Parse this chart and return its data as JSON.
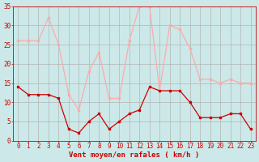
{
  "x": [
    0,
    1,
    2,
    3,
    4,
    5,
    6,
    7,
    8,
    9,
    10,
    11,
    12,
    13,
    14,
    15,
    16,
    17,
    18,
    19,
    20,
    21,
    22,
    23
  ],
  "wind_avg": [
    14,
    12,
    12,
    12,
    11,
    3,
    2,
    5,
    7,
    3,
    5,
    7,
    8,
    14,
    13,
    13,
    13,
    10,
    6,
    6,
    6,
    7,
    7,
    3
  ],
  "wind_gust": [
    26,
    26,
    26,
    32,
    25,
    12,
    8,
    18,
    23,
    11,
    11,
    26,
    35,
    35,
    13,
    30,
    29,
    24,
    16,
    16,
    15,
    16,
    15,
    15
  ],
  "color_avg": "#cc0000",
  "color_gust": "#ffaaaa",
  "bg_color": "#cce8e8",
  "grid_color": "#aaaaaa",
  "xlabel": "Vent moyen/en rafales ( km/h )",
  "ylim": [
    0,
    35
  ],
  "yticks": [
    0,
    5,
    10,
    15,
    20,
    25,
    30,
    35
  ],
  "xticks": [
    0,
    1,
    2,
    3,
    4,
    5,
    6,
    7,
    8,
    9,
    10,
    11,
    12,
    13,
    14,
    15,
    16,
    17,
    18,
    19,
    20,
    21,
    22,
    23
  ],
  "tick_fontsize": 5.5,
  "xlabel_fontsize": 6.5
}
